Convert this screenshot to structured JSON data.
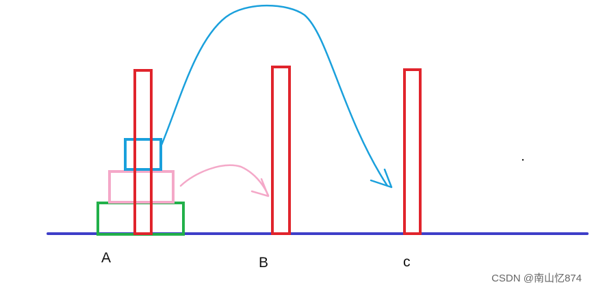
{
  "pegs": [
    {
      "label": "A"
    },
    {
      "label": "B"
    },
    {
      "label": "c"
    }
  ],
  "disks": [
    {
      "size": "small",
      "color": "#1aa0dc"
    },
    {
      "size": "medium",
      "color": "#f4a8c8"
    },
    {
      "size": "large",
      "color": "#22b04a"
    }
  ],
  "moves": [
    {
      "disk": "small",
      "to": "c",
      "color": "#1aa0dc"
    },
    {
      "disk": "medium",
      "to": "B",
      "color": "#f4a8c8"
    }
  ],
  "colors": {
    "ground": "#3e3ec8",
    "peg": "#e0242c",
    "small_disk": "#1aa0dc",
    "medium_disk": "#f4a8c8",
    "large_disk": "#22b04a"
  },
  "watermark": "CSDN @南山忆874"
}
